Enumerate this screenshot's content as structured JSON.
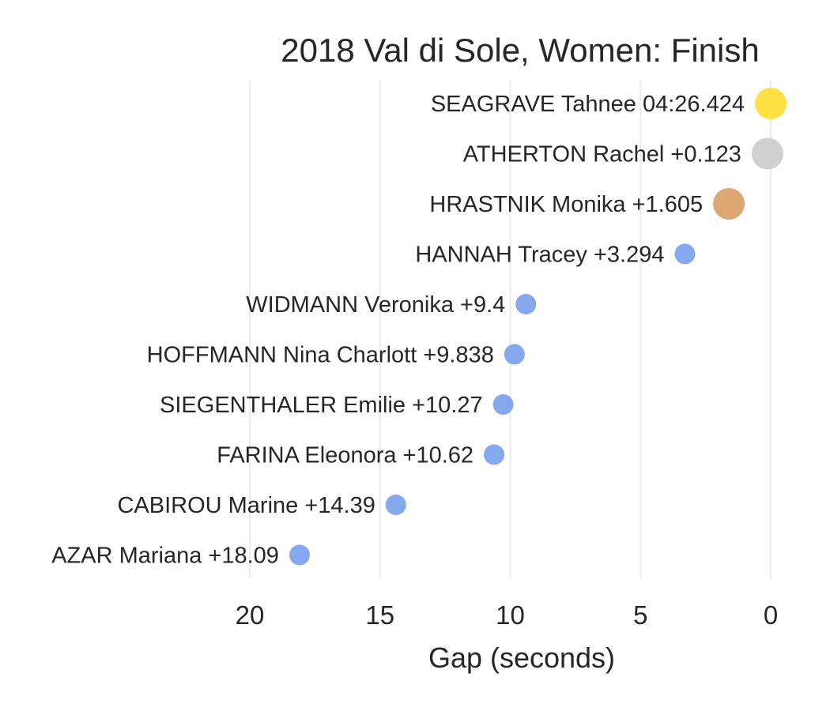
{
  "chart_data": {
    "type": "scatter",
    "title": "2018 Val di Sole, Women: Finish",
    "xlabel": "Gap (seconds)",
    "ylabel": "",
    "xlim": [
      21,
      -0.8
    ],
    "x_reversed": true,
    "grid": "vertical",
    "xticks": [
      20,
      15,
      10,
      5,
      0
    ],
    "xtick_labels": [
      "20",
      "15",
      "10",
      "5",
      "0"
    ],
    "points": [
      {
        "label": "SEAGRAVE Tahnee 04:26.424",
        "gap": 0,
        "rank": 1,
        "color": "#ffdd33",
        "size": "large"
      },
      {
        "label": "ATHERTON Rachel +0.123",
        "gap": 0.123,
        "rank": 2,
        "color": "#cccccc",
        "size": "large"
      },
      {
        "label": "HRASTNIK Monika +1.605",
        "gap": 1.605,
        "rank": 3,
        "color": "#d9a066",
        "size": "large"
      },
      {
        "label": "HANNAH Tracey +3.294",
        "gap": 3.294,
        "rank": 4,
        "color": "#86a8ee",
        "size": "small"
      },
      {
        "label": "WIDMANN Veronika +9.4",
        "gap": 9.4,
        "rank": 5,
        "color": "#86a8ee",
        "size": "small"
      },
      {
        "label": "HOFFMANN Nina Charlott +9.838",
        "gap": 9.838,
        "rank": 6,
        "color": "#86a8ee",
        "size": "small"
      },
      {
        "label": "SIEGENTHALER Emilie +10.27",
        "gap": 10.27,
        "rank": 7,
        "color": "#86a8ee",
        "size": "small"
      },
      {
        "label": "FARINA Eleonora +10.62",
        "gap": 10.62,
        "rank": 8,
        "color": "#86a8ee",
        "size": "small"
      },
      {
        "label": "CABIROU Marine +14.39",
        "gap": 14.39,
        "rank": 9,
        "color": "#86a8ee",
        "size": "small"
      },
      {
        "label": "AZAR Mariana +18.09",
        "gap": 18.09,
        "rank": 10,
        "color": "#86a8ee",
        "size": "small"
      }
    ]
  }
}
